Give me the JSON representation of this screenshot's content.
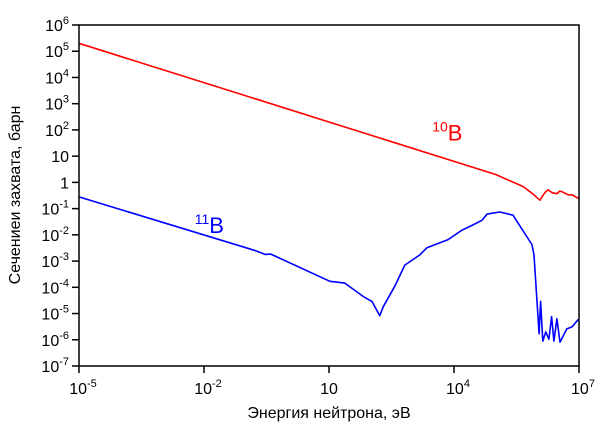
{
  "chart_data": {
    "type": "line",
    "title": "",
    "xlabel": "Энергия нейтрона, эВ",
    "ylabel": "Сечениеи захвата, барн",
    "xscale": "log",
    "yscale": "log",
    "xlim": [
      1e-05,
      10000000.0
    ],
    "ylim": [
      1e-07,
      1000000.0
    ],
    "grid": false,
    "x_ticks": [
      {
        "value": 1e-05,
        "base": "10",
        "exp": "-5"
      },
      {
        "value": 0.01,
        "base": "10",
        "exp": "-2"
      },
      {
        "value": 10,
        "base": "10",
        "exp": ""
      },
      {
        "value": 10000.0,
        "base": "10",
        "exp": "4"
      },
      {
        "value": 10000000.0,
        "base": "10",
        "exp": "7"
      }
    ],
    "y_ticks": [
      {
        "value": 1000000.0,
        "base": "10",
        "exp": "6"
      },
      {
        "value": 100000.0,
        "base": "10",
        "exp": "5"
      },
      {
        "value": 10000.0,
        "base": "10",
        "exp": "4"
      },
      {
        "value": 1000.0,
        "base": "10",
        "exp": "3"
      },
      {
        "value": 100.0,
        "base": "10",
        "exp": "2"
      },
      {
        "value": 10,
        "base": "10",
        "exp": ""
      },
      {
        "value": 1,
        "base": "1",
        "exp": ""
      },
      {
        "value": 0.1,
        "base": "10",
        "exp": "-1"
      },
      {
        "value": 0.01,
        "base": "10",
        "exp": "-2"
      },
      {
        "value": 0.001,
        "base": "10",
        "exp": "-3"
      },
      {
        "value": 0.0001,
        "base": "10",
        "exp": "-4"
      },
      {
        "value": 1e-05,
        "base": "10",
        "exp": "-5"
      },
      {
        "value": 1e-06,
        "base": "10",
        "exp": "-6"
      },
      {
        "value": 1e-07,
        "base": "10",
        "exp": "-7"
      }
    ],
    "series": [
      {
        "name": "10B",
        "label_mass": "10",
        "label_symbol": "B",
        "color": "#ff0000",
        "label_at": [
          3000,
          40
        ],
        "points": [
          [
            1e-05,
            200000.0
          ],
          [
            100000.0,
            2
          ],
          [
            460000.0,
            0.69
          ],
          [
            800000.0,
            0.35
          ],
          [
            1150000.0,
            0.21
          ],
          [
            1500000.0,
            0.4
          ],
          [
            1800000.0,
            0.52
          ],
          [
            2300000.0,
            0.4
          ],
          [
            3000000.0,
            0.37
          ],
          [
            3400000.0,
            0.46
          ],
          [
            3900000.0,
            0.44
          ],
          [
            5400000.0,
            0.34
          ],
          [
            7000000.0,
            0.33
          ],
          [
            9000000.0,
            0.26
          ],
          [
            10000000.0,
            0.25
          ]
        ]
      },
      {
        "name": "11B",
        "label_mass": "11",
        "label_symbol": "B",
        "color": "#0000ff",
        "label_at": [
          0.006,
          0.012
        ],
        "points": [
          [
            1e-05,
            0.28
          ],
          [
            0.17,
            0.0025
          ],
          [
            0.25,
            0.002
          ],
          [
            0.29,
            0.0018
          ],
          [
            0.4,
            0.00185
          ],
          [
            10.5,
            0.00017
          ],
          [
            24,
            0.000145
          ],
          [
            66,
            4.5e-05
          ],
          [
            107,
            2.9e-05
          ],
          [
            166,
            8.3e-06
          ],
          [
            200,
            1.8e-05
          ],
          [
            380,
            0.00011
          ],
          [
            660,
            0.0007
          ],
          [
            1500,
            0.0017
          ],
          [
            2240,
            0.0032
          ],
          [
            7200,
            0.0066
          ],
          [
            15500,
            0.015
          ],
          [
            27000,
            0.023
          ],
          [
            47000,
            0.036
          ],
          [
            62000,
            0.062
          ],
          [
            126000.0,
            0.074
          ],
          [
            260000.0,
            0.056
          ],
          [
            740000.0,
            0.0043
          ],
          [
            830000.0,
            0.0017
          ],
          [
            1100000.0,
            1.7e-06
          ],
          [
            1200000.0,
            2.9e-05
          ],
          [
            1350000.0,
            8.9e-07
          ],
          [
            1600000.0,
            2e-06
          ],
          [
            1900000.0,
            1.05e-06
          ],
          [
            2200000.0,
            7.6e-06
          ],
          [
            2500000.0,
            8.9e-07
          ],
          [
            2950000.0,
            6.3e-06
          ],
          [
            3500000.0,
            8.1e-07
          ],
          [
            5100000.0,
            2.6e-06
          ],
          [
            6800000.0,
            3.1e-06
          ],
          [
            9500000.0,
            5.8e-06
          ],
          [
            10000000.0,
            6e-06
          ]
        ]
      }
    ]
  }
}
